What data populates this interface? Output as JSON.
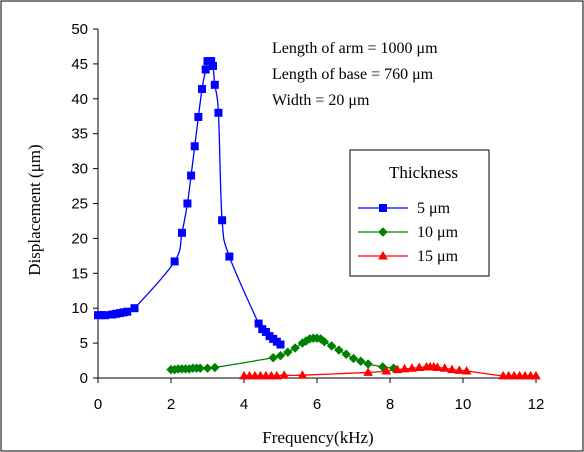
{
  "chart_data": {
    "type": "line",
    "xlabel": "Frequency(kHz)",
    "ylabel": "Displacement (μm)",
    "xlim": [
      0,
      12
    ],
    "ylim": [
      0,
      50
    ],
    "xticks": [
      "0",
      "2",
      "4",
      "6",
      "8",
      "10",
      "12"
    ],
    "yticks": [
      "0",
      "5",
      "10",
      "15",
      "20",
      "25",
      "30",
      "35",
      "40",
      "45",
      "50"
    ],
    "grid": false,
    "legend_placement": "right",
    "annotations": [
      "Length of arm = 1000 μm",
      "Length of base = 760 μm",
      "Width = 20 μm"
    ],
    "legend_title": "Thickness",
    "series": [
      {
        "name": "5 μm",
        "color": "#0000ff",
        "marker": "square",
        "x": [
          0,
          0.1,
          0.2,
          0.4,
          0.5,
          0.6,
          0.7,
          0.8,
          1.0,
          2.1,
          2.3,
          2.45,
          2.55,
          2.65,
          2.75,
          2.85,
          2.95,
          3.0,
          3.1,
          3.15,
          3.2,
          3.3,
          3.4,
          3.6,
          4.4,
          4.5,
          4.6,
          4.7,
          4.8,
          4.9,
          5.0
        ],
        "y": [
          9.0,
          9.0,
          9.0,
          9.1,
          9.2,
          9.3,
          9.4,
          9.5,
          10.0,
          16.7,
          20.8,
          25.0,
          29.0,
          33.2,
          37.4,
          41.4,
          44.2,
          45.4,
          45.4,
          44.7,
          42.0,
          38.0,
          22.6,
          17.4,
          7.8,
          7.0,
          6.6,
          6.0,
          5.6,
          5.2,
          4.8
        ]
      },
      {
        "name": "10 μm",
        "color": "#008000",
        "marker": "diamond",
        "x": [
          2.0,
          2.1,
          2.2,
          2.3,
          2.4,
          2.5,
          2.6,
          2.7,
          2.8,
          3.0,
          3.2,
          4.8,
          5.0,
          5.2,
          5.4,
          5.6,
          5.7,
          5.8,
          5.9,
          6.0,
          6.1,
          6.2,
          6.4,
          6.6,
          6.8,
          7.0,
          7.2,
          7.4,
          7.8,
          8.1
        ],
        "y": [
          1.2,
          1.2,
          1.3,
          1.3,
          1.3,
          1.3,
          1.4,
          1.4,
          1.4,
          1.4,
          1.5,
          2.9,
          3.2,
          3.7,
          4.3,
          5.0,
          5.3,
          5.6,
          5.7,
          5.7,
          5.6,
          5.2,
          4.6,
          4.0,
          3.4,
          2.8,
          2.4,
          2.0,
          1.6,
          1.4
        ]
      },
      {
        "name": "15 μm",
        "color": "#ff0000",
        "marker": "triangle",
        "x": [
          4.0,
          4.15,
          4.3,
          4.45,
          4.6,
          4.75,
          4.9,
          5.1,
          5.6,
          7.4,
          7.9,
          8.2,
          8.4,
          8.6,
          8.8,
          9.0,
          9.1,
          9.2,
          9.3,
          9.5,
          9.7,
          9.9,
          10.1,
          11.1,
          11.25,
          11.4,
          11.55,
          11.7,
          11.85,
          12.0
        ],
        "y": [
          0.3,
          0.3,
          0.3,
          0.3,
          0.3,
          0.3,
          0.3,
          0.4,
          0.4,
          0.8,
          1.0,
          1.2,
          1.3,
          1.4,
          1.5,
          1.6,
          1.6,
          1.6,
          1.5,
          1.4,
          1.2,
          1.1,
          1.0,
          0.3,
          0.3,
          0.3,
          0.3,
          0.3,
          0.3,
          0.3
        ]
      }
    ]
  }
}
